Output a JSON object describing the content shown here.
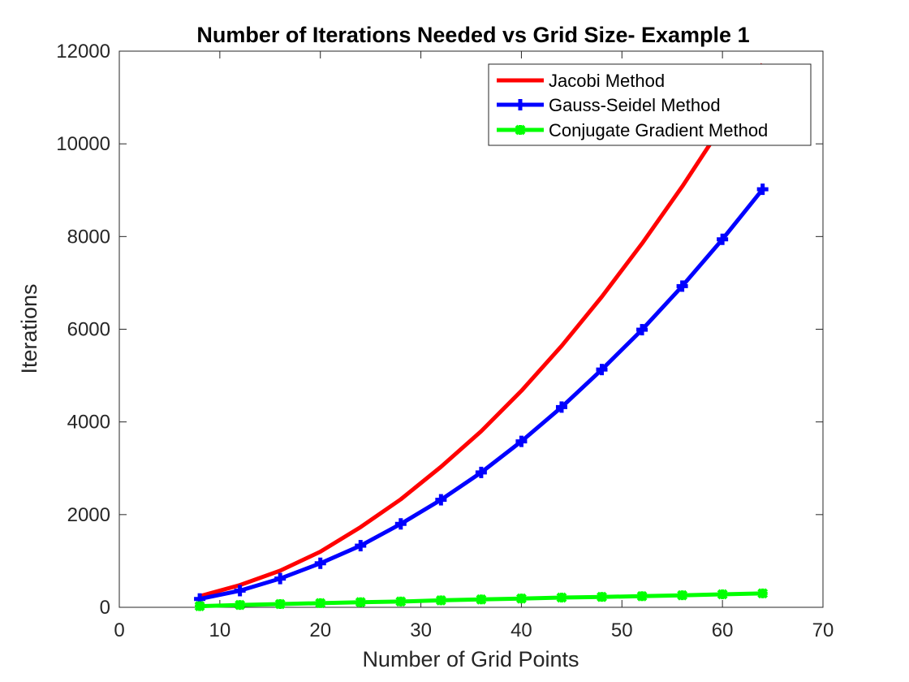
{
  "chart_data": {
    "type": "line",
    "title": "Number of Iterations Needed vs Grid Size- Example 1",
    "xlabel": "Number of Grid Points",
    "ylabel": "Iterations",
    "xlim": [
      0,
      70
    ],
    "ylim": [
      0,
      12000
    ],
    "xticks": [
      0,
      10,
      20,
      30,
      40,
      50,
      60,
      70
    ],
    "yticks": [
      0,
      2000,
      4000,
      6000,
      8000,
      10000,
      12000
    ],
    "grid": false,
    "legend_position": "top-right",
    "x": [
      8,
      12,
      16,
      20,
      24,
      28,
      32,
      36,
      40,
      44,
      48,
      52,
      56,
      60,
      64
    ],
    "series": [
      {
        "name": "Jacobi Method",
        "color": "#ff0000",
        "marker": "none",
        "values": [
          240,
          480,
          790,
          1200,
          1730,
          2330,
          3030,
          3800,
          4670,
          5640,
          6700,
          7850,
          9080,
          10400,
          11720
        ]
      },
      {
        "name": "Gauss-Seidel Method",
        "color": "#0000ff",
        "marker": "plus",
        "values": [
          180,
          360,
          620,
          950,
          1330,
          1800,
          2320,
          2910,
          3580,
          4320,
          5130,
          5990,
          6930,
          7940,
          9020
        ]
      },
      {
        "name": "Conjugate Gradient Method",
        "color": "#00ff00",
        "marker": "star",
        "values": [
          25,
          50,
          70,
          90,
          110,
          125,
          150,
          170,
          190,
          210,
          225,
          240,
          260,
          280,
          300
        ]
      }
    ]
  }
}
